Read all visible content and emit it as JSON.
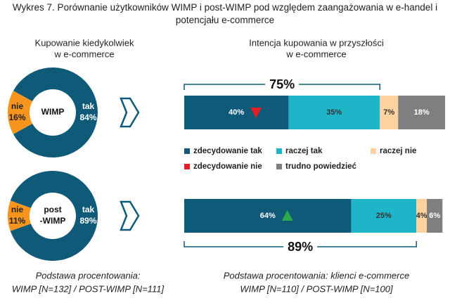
{
  "title": "Wykres 7. Porównanie użytkowników WIMP i post-WIMP pod względem zaangażowania w e-handel i potencjału e-commerce",
  "chart_data": [
    {
      "type": "pie",
      "donut": true,
      "title": [
        "Kupowanie kiedykolwiek",
        "w e-commerce"
      ],
      "center_label": [
        "WIMP"
      ],
      "categories": [
        "tak",
        "nie"
      ],
      "values": [
        84,
        16
      ],
      "value_labels": [
        "84%",
        "16%"
      ],
      "colors": [
        "#0e5a78",
        "#f7941d"
      ],
      "footnote": [
        "Podstawa procentowania:",
        "WIMP [N=132] / POST-WIMP [N=111]"
      ]
    },
    {
      "type": "pie",
      "donut": true,
      "center_label": [
        "post",
        "-WIMP"
      ],
      "categories": [
        "tak",
        "nie"
      ],
      "values": [
        89,
        11
      ],
      "value_labels": [
        "89%",
        "11%"
      ],
      "colors": [
        "#0e5a78",
        "#f7941d"
      ]
    },
    {
      "type": "bar",
      "orientation": "horizontal",
      "stacked": true,
      "title": [
        "Intencja kupowania w przyszłości",
        "w e-commerce"
      ],
      "categories": [
        null,
        null
      ],
      "xlim": [
        0,
        100
      ],
      "series": [
        {
          "name": "zdecydowanie tak",
          "color": "#0e5a78",
          "label_color": "#ffffff",
          "values": [
            40,
            64
          ],
          "value_labels": [
            "40%",
            "64%"
          ]
        },
        {
          "name": "raczej tak",
          "color": "#1fb5c9",
          "label_color": "#333333",
          "values": [
            35,
            25
          ],
          "value_labels": [
            "35%",
            "25%"
          ]
        },
        {
          "name": "raczej nie",
          "color": "#fcd29f",
          "label_color": "#333333",
          "values": [
            7,
            4
          ],
          "value_labels": [
            "7%",
            "4%"
          ]
        },
        {
          "name": "zdecydowanie nie",
          "color": "#e31e24",
          "label_color": "#ffffff",
          "values": [
            null,
            null
          ]
        },
        {
          "name": "trudno powiedzieć",
          "color": "#7f7f7f",
          "label_color": "#ffffff",
          "values": [
            18,
            6
          ],
          "value_labels": [
            "18%",
            "6%"
          ]
        }
      ],
      "totals": [
        75,
        89
      ],
      "total_labels": [
        "75%",
        "89%"
      ],
      "markers": [
        {
          "direction": "down",
          "color": "#e31e24"
        },
        {
          "direction": "up",
          "color": "#2eaa4a"
        }
      ],
      "footnote": [
        "Podstawa procentowania: klienci e-commerce",
        "WIMP [N=110] / POST-WIMP [N=100]"
      ]
    }
  ]
}
